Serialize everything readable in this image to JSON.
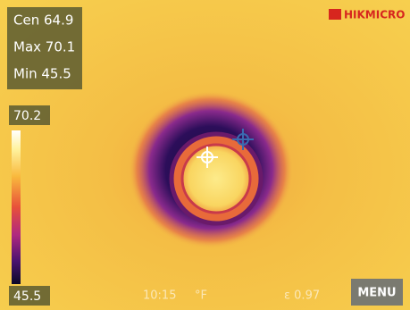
{
  "readings": [
    "Cen 64.9",
    "Max 70.1",
    "Min 45.5"
  ],
  "brand": "HIKMICRO",
  "scale": {
    "max": "70.2",
    "min": "45.5"
  },
  "status": {
    "time": "10:15",
    "unit": "°F",
    "emissivity": "ε 0.97"
  },
  "menu": "MENU"
}
